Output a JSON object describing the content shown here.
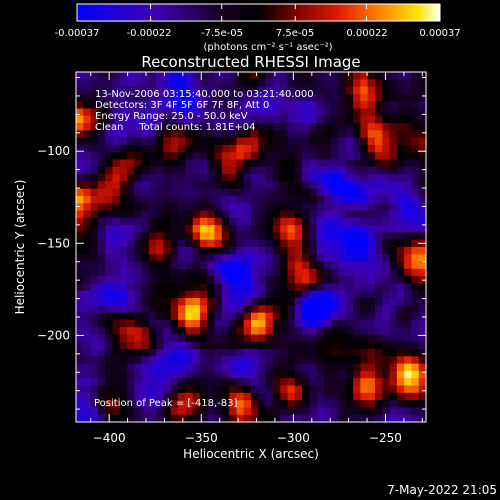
{
  "colorbar": {
    "ticks": [
      "-0.00037",
      "-0.00022",
      "-7.5e-05",
      "7.5e-05",
      "0.00022",
      "0.00037"
    ],
    "range": [
      -0.00037,
      0.00037
    ],
    "unit_label": "(photons cm⁻² s⁻¹ asec⁻²)"
  },
  "chart_data": {
    "type": "heatmap",
    "title": "Reconstructed RHESSI Image",
    "xlabel": "Heliocentric X (arcsec)",
    "ylabel": "Heliocentric Y (arcsec)",
    "xlim": [
      -418,
      -228
    ],
    "ylim": [
      -247,
      -57
    ],
    "x_ticks": [
      -400,
      -350,
      -300,
      -250
    ],
    "y_ticks": [
      -100,
      -150,
      -200
    ],
    "grid_size": 48,
    "seed": 9137,
    "grid": false,
    "colormap": "RHESSI 'hot' (blue-black-red-yellow-white)",
    "annotations": {
      "time": "13-Nov-2006 03:15:40.000 to 03:21:40.000",
      "detectors": "Detectors: 3F 4F 5F 6F 7F 8F, Att 0",
      "energy": "Energy Range: 25.0 - 50.0 keV",
      "clean": "Clean     Total counts: 1.81E+04",
      "peak": "Position of Peak = [-418,-83]"
    },
    "hotspots": [
      {
        "x": -345,
        "y": -145,
        "value": 0.00037
      },
      {
        "x": -418,
        "y": -83,
        "value": 0.00037
      },
      {
        "x": -418,
        "y": -130,
        "value": 0.00035
      },
      {
        "x": -237,
        "y": -222,
        "value": 0.00035
      },
      {
        "x": -395,
        "y": -112,
        "value": 0.0003
      },
      {
        "x": -260,
        "y": -70,
        "value": 0.0003
      },
      {
        "x": -255,
        "y": -95,
        "value": 0.00028
      },
      {
        "x": -300,
        "y": -145,
        "value": 0.0003
      },
      {
        "x": -293,
        "y": -170,
        "value": 0.00026
      },
      {
        "x": -318,
        "y": -192,
        "value": 0.0003
      },
      {
        "x": -355,
        "y": -188,
        "value": 0.00028
      },
      {
        "x": -375,
        "y": -153,
        "value": 0.00024
      },
      {
        "x": -385,
        "y": -202,
        "value": 0.00022
      },
      {
        "x": -300,
        "y": -228,
        "value": 0.00028
      },
      {
        "x": -260,
        "y": -228,
        "value": 0.00026
      },
      {
        "x": -232,
        "y": -160,
        "value": 0.00024
      },
      {
        "x": -395,
        "y": -238,
        "value": 0.0002
      },
      {
        "x": -330,
        "y": -100,
        "value": 0.00024
      },
      {
        "x": -365,
        "y": -95,
        "value": 0.00022
      },
      {
        "x": -360,
        "y": -238,
        "value": 0.0002
      },
      {
        "x": -330,
        "y": -238,
        "value": 0.00022
      },
      {
        "x": -278,
        "y": -200,
        "value": 0.0002
      },
      {
        "x": -287,
        "y": -183,
        "value": -0.00037
      },
      {
        "x": -265,
        "y": -150,
        "value": -0.00022
      },
      {
        "x": -335,
        "y": -165,
        "value": -0.0002
      },
      {
        "x": -360,
        "y": -70,
        "value": -0.00018
      },
      {
        "x": -240,
        "y": -120,
        "value": -0.00016
      },
      {
        "x": -395,
        "y": -178,
        "value": -0.00016
      },
      {
        "x": -270,
        "y": -120,
        "value": -0.00015
      }
    ]
  },
  "footer": {
    "datetime": "7-May-2022 21:05"
  },
  "colors": {
    "background": "#000000",
    "text": "#ffffff"
  }
}
